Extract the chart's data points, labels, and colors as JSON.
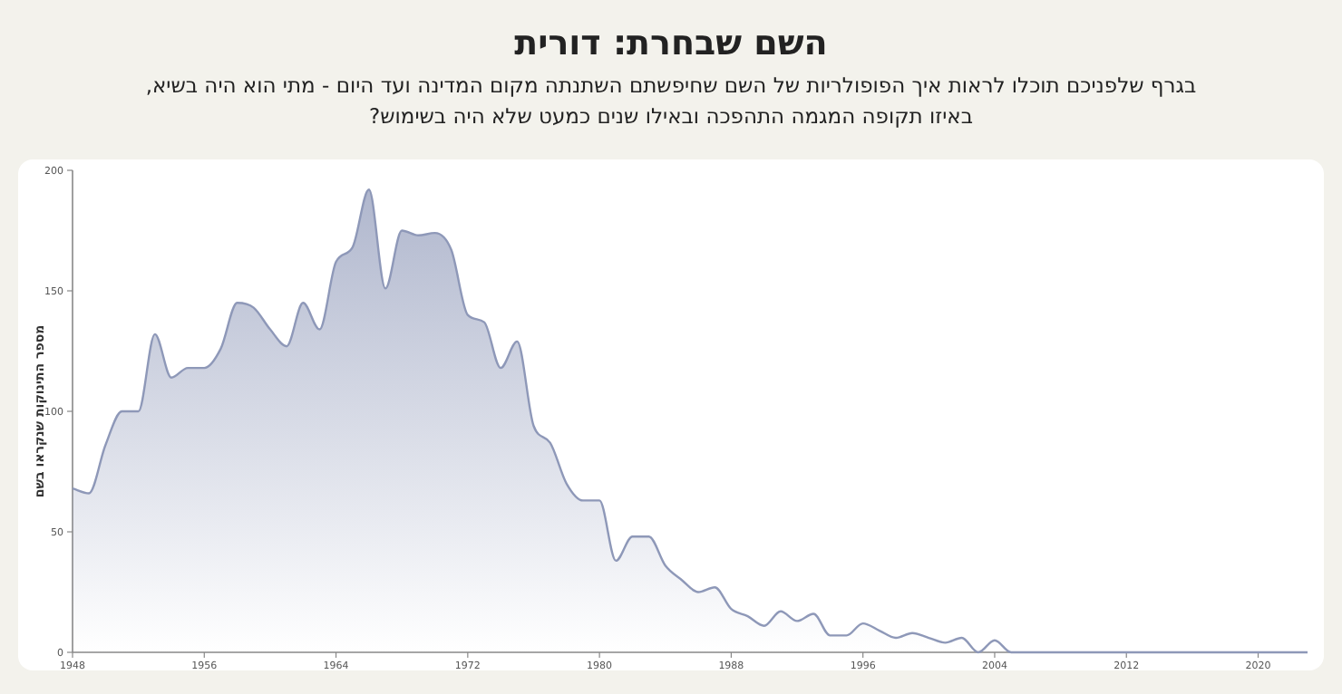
{
  "chart_data": {
    "type": "area",
    "title": "השם שבחרת: דורית",
    "subtitle": "בגרף שלפניכם תוכלו לראות איך הפופולריות של השם שחיפשתם השתנתה מקום המדינה ועד היום - מתי הוא היה בשיא,\nבאיזו תקופה המגמה התהפכה ובאילו שנים כמעט שלא היה בשימוש?",
    "ylabel": "מספר התינוקות שנקראו בשם",
    "x": [
      1948,
      1949,
      1950,
      1951,
      1952,
      1953,
      1954,
      1955,
      1956,
      1957,
      1958,
      1959,
      1960,
      1961,
      1962,
      1963,
      1964,
      1965,
      1966,
      1967,
      1968,
      1969,
      1970,
      1971,
      1972,
      1973,
      1974,
      1975,
      1976,
      1977,
      1978,
      1979,
      1980,
      1981,
      1982,
      1983,
      1984,
      1985,
      1986,
      1987,
      1988,
      1989,
      1990,
      1991,
      1992,
      1993,
      1994,
      1995,
      1996,
      1997,
      1998,
      1999,
      2000,
      2001,
      2002,
      2003,
      2004,
      2005,
      2023
    ],
    "series": [
      {
        "color": "#8e98b8",
        "values": [
          68,
          66,
          86,
          100,
          100,
          132,
          114,
          118,
          118,
          126,
          145,
          143,
          134,
          127,
          145,
          134,
          162,
          168,
          192,
          151,
          175,
          173,
          174,
          167,
          140,
          137,
          118,
          129,
          94,
          87,
          70,
          63,
          63,
          38,
          48,
          48,
          36,
          30,
          25,
          27,
          18,
          15,
          11,
          17,
          13,
          16,
          7,
          7,
          12,
          9,
          6,
          8,
          6,
          4,
          6,
          0,
          5,
          0,
          0
        ]
      }
    ],
    "xlim": [
      1948,
      2023
    ],
    "xticks": [
      1948,
      1956,
      1964,
      1972,
      1980,
      1988,
      1996,
      2004,
      2012,
      2020
    ],
    "ylim": [
      0,
      200
    ],
    "yticks": [
      0,
      50,
      100,
      150,
      200
    ],
    "grid": false,
    "marker": "none",
    "line_style": "solid"
  }
}
